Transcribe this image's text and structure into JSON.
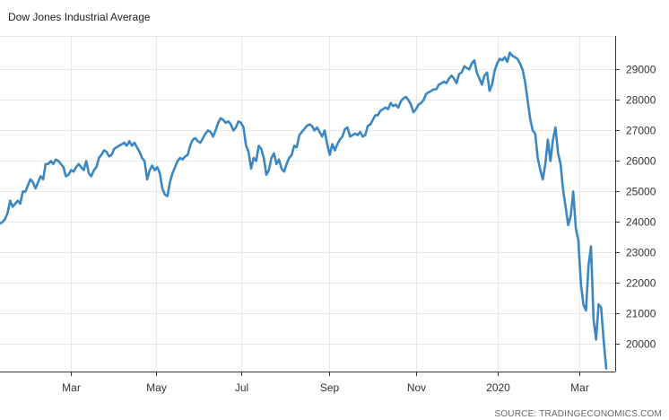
{
  "title": "Dow Jones Industrial Average",
  "source": "SOURCE: TRADINGECONOMICS.COM",
  "colors": {
    "line": "#3a87c4",
    "grid": "#e8e8e8",
    "axis": "#333333"
  },
  "chart_data": {
    "type": "line",
    "title": "Dow Jones Industrial Average",
    "xlabel": "",
    "ylabel": "",
    "x_tick_labels": [
      "Mar",
      "May",
      "Jul",
      "Sep",
      "Nov",
      "2020",
      "Mar"
    ],
    "y_ticks": [
      20000,
      21000,
      22000,
      23000,
      24000,
      25000,
      26000,
      27000,
      28000,
      29000
    ],
    "ylim": [
      19100,
      30100
    ],
    "grid": true,
    "y_axis_side": "right",
    "series": [
      {
        "values": [
          23950,
          24000,
          24100,
          24300,
          24700,
          24500,
          24600,
          24700,
          24600,
          25000,
          25000,
          25200,
          25400,
          25300,
          25100,
          25300,
          25500,
          25400,
          25900,
          25900,
          26000,
          25900,
          26050,
          26000,
          25900,
          25800,
          25500,
          25550,
          25700,
          25650,
          25800,
          25900,
          25800,
          25700,
          26000,
          25600,
          25500,
          25700,
          25800,
          26100,
          26200,
          26350,
          26300,
          26150,
          26200,
          26400,
          26450,
          26500,
          26550,
          26600,
          26500,
          26650,
          26500,
          26600,
          26450,
          26300,
          26100,
          26000,
          25400,
          25700,
          25850,
          25700,
          25800,
          25600,
          25100,
          24900,
          24850,
          25300,
          25600,
          25800,
          26000,
          26100,
          26050,
          26150,
          26200,
          26500,
          26700,
          26750,
          26650,
          26600,
          26750,
          26900,
          27000,
          26950,
          26800,
          27000,
          27250,
          27400,
          27350,
          27250,
          27300,
          27200,
          27000,
          27100,
          27300,
          27250,
          27100,
          26500,
          26300,
          25750,
          26100,
          26000,
          26500,
          26400,
          26100,
          25550,
          25700,
          26100,
          26250,
          25900,
          26050,
          25750,
          25650,
          25900,
          26100,
          26200,
          26500,
          26450,
          26850,
          26950,
          27050,
          27150,
          27200,
          27150,
          27000,
          27100,
          26950,
          26800,
          27000,
          26550,
          26200,
          26550,
          26350,
          26550,
          26700,
          26800,
          27050,
          27100,
          26800,
          26850,
          26900,
          26850,
          26950,
          26800,
          26850,
          27150,
          27200,
          27350,
          27500,
          27500,
          27650,
          27700,
          27750,
          27700,
          27900,
          27800,
          27850,
          27750,
          27950,
          28050,
          28100,
          28000,
          27850,
          27600,
          27700,
          27850,
          27900,
          28000,
          28200,
          28250,
          28300,
          28350,
          28350,
          28500,
          28550,
          28600,
          28550,
          28700,
          28800,
          28700,
          28550,
          28850,
          28900,
          29100,
          29050,
          29000,
          29200,
          29300,
          28900,
          28700,
          28500,
          28800,
          28900,
          28300,
          28500,
          28950,
          29200,
          29350,
          29300,
          29400,
          29250,
          29550,
          29450,
          29400,
          29350,
          29200,
          29000,
          28600,
          28000,
          27400,
          27000,
          26900,
          26100,
          25700,
          25400,
          25900,
          26700,
          26000,
          26700,
          27100,
          26250,
          25900,
          25050,
          24500,
          23900,
          24200,
          25000,
          23800,
          23400,
          22000,
          21300,
          21100,
          22550,
          23200,
          20800,
          20150,
          21300,
          21200,
          20100,
          19200
        ]
      }
    ]
  }
}
